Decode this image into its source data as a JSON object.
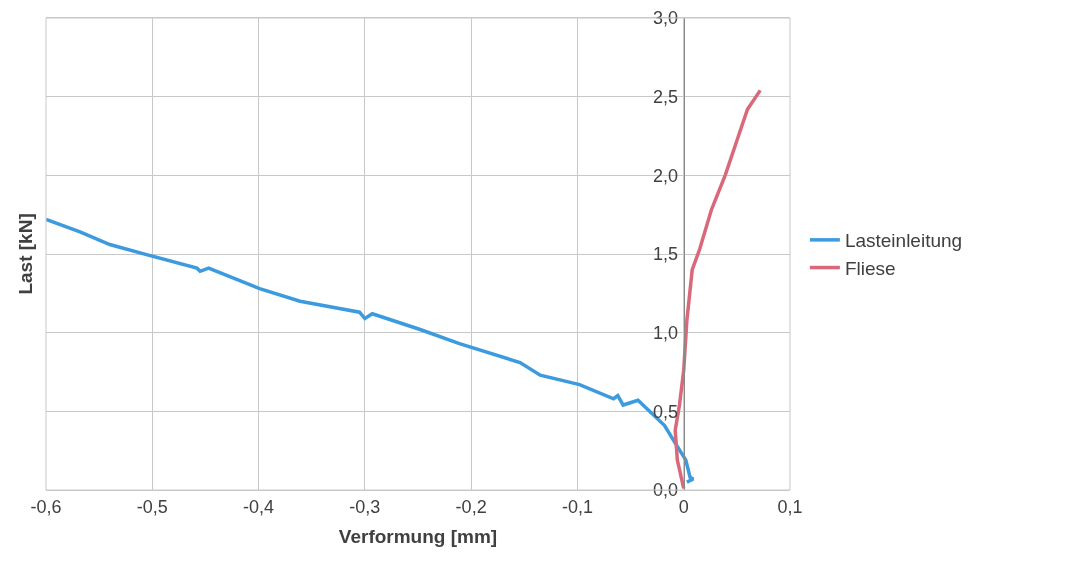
{
  "chart_data": {
    "type": "line",
    "xlabel": "Verformung [mm]",
    "ylabel": "Last [kN]",
    "xlim": [
      -0.6,
      0.1
    ],
    "xticks": [
      {
        "value": -0.6,
        "label": "-0,6"
      },
      {
        "value": -0.5,
        "label": "-0,5"
      },
      {
        "value": -0.4,
        "label": "-0,4"
      },
      {
        "value": -0.3,
        "label": "-0,3"
      },
      {
        "value": -0.2,
        "label": "-0,2"
      },
      {
        "value": -0.1,
        "label": "-0,1"
      },
      {
        "value": 0,
        "label": "0"
      },
      {
        "value": 0.1,
        "label": "0,1"
      }
    ],
    "ylim": [
      0,
      3
    ],
    "yticks": [
      {
        "value": 0,
        "label": "0,0"
      },
      {
        "value": 0.5,
        "label": "0,5"
      },
      {
        "value": 1,
        "label": "1,0"
      },
      {
        "value": 1.5,
        "label": "1,5"
      },
      {
        "value": 2,
        "label": "2,0"
      },
      {
        "value": 2.5,
        "label": "2,5"
      },
      {
        "value": 3,
        "label": "3,0"
      }
    ],
    "grid": true,
    "legend": "right",
    "marker": "none",
    "line_style": "solid",
    "series": [
      {
        "name": "Lasteinleitung",
        "color": "#3c9ade",
        "x": [
          -0.6,
          -0.568,
          -0.54,
          -0.502,
          -0.458,
          -0.455,
          -0.447,
          -0.399,
          -0.361,
          -0.305,
          -0.3,
          -0.293,
          -0.248,
          -0.211,
          -0.154,
          -0.135,
          -0.098,
          -0.066,
          -0.062,
          -0.057,
          -0.043,
          -0.018,
          -0.01,
          0.002,
          0.006,
          0.009,
          0.003
        ],
        "values": [
          1.72,
          1.64,
          1.56,
          1.49,
          1.41,
          1.39,
          1.41,
          1.28,
          1.2,
          1.13,
          1.09,
          1.12,
          1.02,
          0.93,
          0.81,
          0.73,
          0.67,
          0.58,
          0.6,
          0.54,
          0.57,
          0.41,
          0.32,
          0.19,
          0.08,
          0.07,
          0.05
        ]
      },
      {
        "name": "Fliese",
        "color": "#d9687a",
        "x": [
          0,
          -0.006,
          -0.008,
          -0.004,
          0,
          0.003,
          0.008,
          0.015,
          0.026,
          0.039,
          0.05,
          0.06,
          0.072
        ],
        "values": [
          0.01,
          0.19,
          0.38,
          0.54,
          0.76,
          1.08,
          1.4,
          1.53,
          1.78,
          2.0,
          2.22,
          2.42,
          2.54
        ]
      }
    ]
  }
}
